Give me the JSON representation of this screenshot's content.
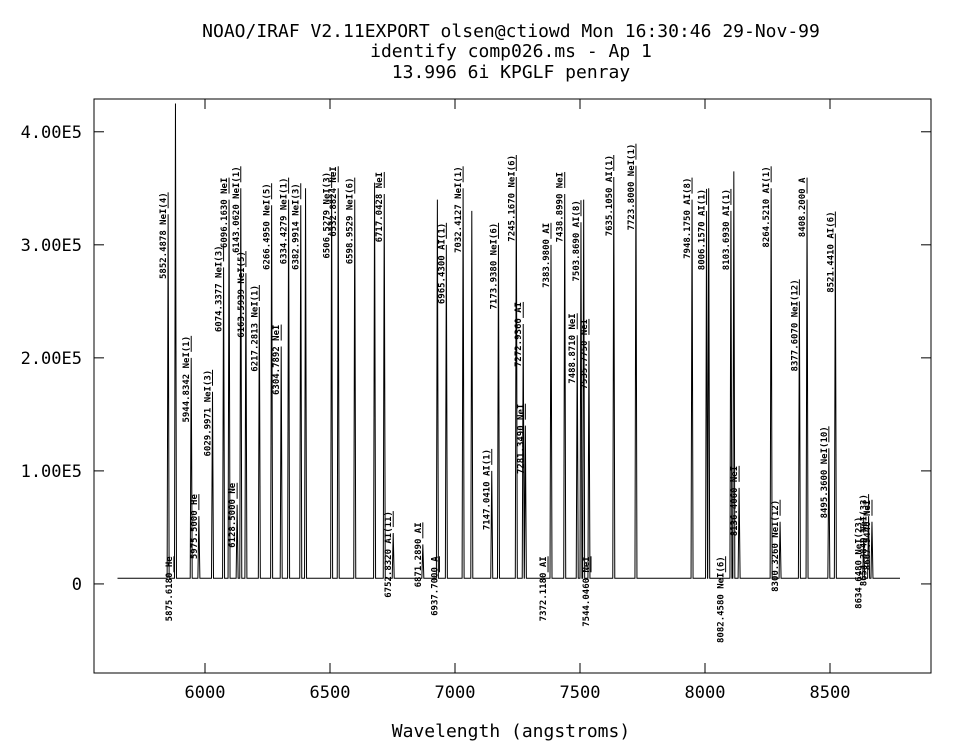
{
  "chart_data": {
    "type": "line",
    "title": "NOAO/IRAF V2.11EXPORT olsen@ctiowd Mon 16:30:46 29-Nov-99",
    "subtitle": "identify comp026.ms - Ap 1",
    "subtitle2": "13.996 6i KPGLF penray",
    "x_label": "Wavelength (angstroms)",
    "color": "#000000",
    "xlim": [
      5556,
      8904
    ],
    "ylim": [
      -78800,
      429000
    ],
    "xticks": [
      6000,
      6500,
      7000,
      7500,
      8000,
      8500
    ],
    "yticks": [
      0,
      {
        "value": 100000,
        "label": "1.00E5"
      },
      {
        "value": 200000,
        "label": "2.00E5"
      },
      {
        "value": 300000,
        "label": "3.00E5"
      },
      {
        "value": 400000,
        "label": "4.00E5"
      }
    ],
    "x": [
      5650,
      5848.5,
      5852.5,
      5856.5,
      5877.9,
      5881.9,
      5885.9,
      5940.8,
      5944.8,
      5948.8,
      5971.5,
      5975.5,
      5979.5,
      6026.0,
      6030.0,
      6034.0,
      6070.3,
      6074.3,
      6078.3,
      6092.2,
      6096.2,
      6100.2,
      6124.5,
      6128.5,
      6132.5,
      6139.1,
      6143.1,
      6147.1,
      6159.6,
      6163.6,
      6167.6,
      6213.3,
      6217.3,
      6221.3,
      6262.5,
      6266.5,
      6270.5,
      6300.8,
      6304.8,
      6308.8,
      6330.4,
      6334.4,
      6338.4,
      6379.0,
      6383.0,
      6387.0,
      6398.2,
      6402.2,
      6406.2,
      6502.5,
      6506.5,
      6510.5,
      6528.9,
      6532.9,
      6536.9,
      6595.0,
      6599.0,
      6603.0,
      6674.3,
      6678.3,
      6682.3,
      6713.0,
      6717.0,
      6721.0,
      6748.8,
      6752.8,
      6756.8,
      6867.3,
      6871.3,
      6875.3,
      6925.5,
      6929.5,
      6933.5,
      6961.4,
      6965.4,
      6969.4,
      7028.4,
      7032.4,
      7036.4,
      7063.2,
      7067.2,
      7071.2,
      7143.0,
      7147.0,
      7151.0,
      7169.9,
      7173.9,
      7177.9,
      7241.2,
      7245.2,
      7249.2,
      7268.9,
      7272.9,
      7276.9,
      7277.4,
      7281.4,
      7285.4,
      7380.0,
      7384.0,
      7388.0,
      7434.9,
      7438.9,
      7442.9,
      7484.9,
      7488.9,
      7492.9,
      7499.9,
      7503.9,
      7507.9,
      7510.7,
      7514.7,
      7518.7,
      7531.8,
      7535.8,
      7539.8,
      7631.1,
      7635.1,
      7639.1,
      7719.8,
      7723.8,
      7727.8,
      7944.2,
      7948.2,
      7952.2,
      8002.2,
      8006.2,
      8010.2,
      8010.8,
      8014.8,
      8018.8,
      8099.7,
      8103.7,
      8107.7,
      8111.3,
      8115.3,
      8119.3,
      8132.4,
      8136.4,
      8140.4,
      8260.5,
      8264.5,
      8268.5,
      8296.3,
      8300.3,
      8304.3,
      8373.6,
      8377.6,
      8381.6,
      8404.2,
      8408.2,
      8412.2,
      8491.4,
      8495.4,
      8499.4,
      8517.4,
      8521.4,
      8525.4,
      8630.6,
      8634.6,
      8638.6,
      8650.4,
      8654.4,
      8658.4,
      8663.9,
      8667.9,
      8671.9,
      8780
    ],
    "values": [
      5000,
      5000,
      327000,
      5000,
      5000,
      425000,
      5000,
      5000,
      200000,
      5000,
      5000,
      60000,
      5000,
      5000,
      170000,
      5000,
      5000,
      280000,
      5000,
      5000,
      340000,
      5000,
      5000,
      70000,
      5000,
      5000,
      350000,
      5000,
      5000,
      275000,
      5000,
      5000,
      245000,
      5000,
      5000,
      335000,
      5000,
      5000,
      210000,
      5000,
      5000,
      340000,
      5000,
      5000,
      335000,
      5000,
      5000,
      350000,
      5000,
      5000,
      345000,
      5000,
      5000,
      350000,
      5000,
      5000,
      340000,
      5000,
      5000,
      355000,
      5000,
      5000,
      345000,
      5000,
      5000,
      45000,
      5000,
      5000,
      35000,
      5000,
      5000,
      340000,
      5000,
      5000,
      300000,
      5000,
      5000,
      350000,
      5000,
      5000,
      330000,
      5000,
      5000,
      100000,
      5000,
      5000,
      300000,
      5000,
      5000,
      360000,
      5000,
      5000,
      230000,
      5000,
      5000,
      140000,
      5000,
      5000,
      300000,
      5000,
      5000,
      345000,
      5000,
      5000,
      220000,
      5000,
      5000,
      320000,
      5000,
      5000,
      340000,
      5000,
      5000,
      215000,
      5000,
      5000,
      360000,
      5000,
      5000,
      370000,
      5000,
      5000,
      340000,
      5000,
      5000,
      330000,
      5000,
      5000,
      350000,
      5000,
      5000,
      330000,
      5000,
      5000,
      365000,
      5000,
      5000,
      85000,
      5000,
      5000,
      350000,
      5000,
      5000,
      55000,
      5000,
      5000,
      250000,
      5000,
      5000,
      340000,
      5000,
      5000,
      120000,
      5000,
      5000,
      310000,
      5000,
      5000,
      40000,
      5000,
      5000,
      60000,
      5000,
      5000,
      55000,
      5000,
      5000
    ],
    "annotations": [
      {
        "x": 5852.4878,
        "label": "5852.4878 NeI(4)"
      },
      {
        "x": 5875.618,
        "label": "5875.6180 He"
      },
      {
        "x": 5944.8342,
        "label": "5944.8342 NeI(1)"
      },
      {
        "x": 5975.5,
        "label": "5975.5000 He"
      },
      {
        "x": 6029.9971,
        "label": "6029.9971 NeI(3)"
      },
      {
        "x": 6074.3377,
        "label": "6074.3377 NeI(3)"
      },
      {
        "x": 6096.163,
        "label": "6096.1630 NeI"
      },
      {
        "x": 6128.5,
        "label": "6128.5000 Ne"
      },
      {
        "x": 6143.062,
        "label": "6143.0620 NeI(1)"
      },
      {
        "x": 6163.5939,
        "label": "6163.5939 NeI(5)"
      },
      {
        "x": 6217.2813,
        "label": "6217.2813 NeI(1)"
      },
      {
        "x": 6266.495,
        "label": "6266.4950 NeI(5)"
      },
      {
        "x": 6304.7892,
        "label": "6304.7892 NeI"
      },
      {
        "x": 6334.4279,
        "label": "6334.4279 NeI(1)"
      },
      {
        "x": 6382.9914,
        "label": "6382.9914 NeI(3)"
      },
      {
        "x": 6506.5279,
        "label": "6506.5279 NeI(3)"
      },
      {
        "x": 6532.8824,
        "label": "6532.8824 NeI"
      },
      {
        "x": 6598.9529,
        "label": "6598.9529 NeI(6)"
      },
      {
        "x": 6717.0428,
        "label": "6717.0428 NeI"
      },
      {
        "x": 6752.832,
        "label": "6752.8320 AI(11)"
      },
      {
        "x": 6871.289,
        "label": "6871.2890 AI"
      },
      {
        "x": 6937.7,
        "label": "6937.7000 A"
      },
      {
        "x": 6965.43,
        "label": "6965.4300 AI(1)"
      },
      {
        "x": 7032.4127,
        "label": "7032.4127 NeI(1)"
      },
      {
        "x": 7147.041,
        "label": "7147.0410 AI(1)"
      },
      {
        "x": 7173.938,
        "label": "7173.9380 NeI(6)"
      },
      {
        "x": 7245.167,
        "label": "7245.1670 NeI(6)"
      },
      {
        "x": 7272.936,
        "label": "7272.9360 AI"
      },
      {
        "x": 7281.349,
        "label": "7281.3490 NeI"
      },
      {
        "x": 7372.118,
        "label": "7372.1180 AI"
      },
      {
        "x": 7383.98,
        "label": "7383.9800 AI"
      },
      {
        "x": 7438.899,
        "label": "7438.8990 NeI"
      },
      {
        "x": 7488.871,
        "label": "7488.8710 NeI"
      },
      {
        "x": 7503.869,
        "label": "7503.8690 AI(8)"
      },
      {
        "x": 7535.775,
        "label": "7535.7750 NeI"
      },
      {
        "x": 7544.046,
        "label": "7544.0460 NeI"
      },
      {
        "x": 7635.105,
        "label": "7635.1050 AI(1)"
      },
      {
        "x": 7723.8,
        "label": "7723.8000 NeI(1)"
      },
      {
        "x": 7948.175,
        "label": "7948.1750 AI(8)"
      },
      {
        "x": 8006.157,
        "label": "8006.1570 AI(1)"
      },
      {
        "x": 8082.458,
        "label": "8082.4580 NeI(6)"
      },
      {
        "x": 8103.693,
        "label": "8103.6930 AI(1)"
      },
      {
        "x": 8136.406,
        "label": "8136.4060 NeI"
      },
      {
        "x": 8264.521,
        "label": "8264.5210 AI(1)"
      },
      {
        "x": 8300.326,
        "label": "8300.3260 NeI(12)"
      },
      {
        "x": 8377.607,
        "label": "8377.6070 NeI(12)"
      },
      {
        "x": 8408.2,
        "label": "8408.2000 A"
      },
      {
        "x": 8495.36,
        "label": "8495.3600 NeI(10)"
      },
      {
        "x": 8521.441,
        "label": "8521.4410 AI(6)"
      },
      {
        "x": 8634.648,
        "label": "8634.6480 NeI(23)"
      },
      {
        "x": 8654.384,
        "label": "8654.3840 NeI(33)"
      },
      {
        "x": 8667.944,
        "label": "8667.9440 NeI"
      }
    ]
  }
}
